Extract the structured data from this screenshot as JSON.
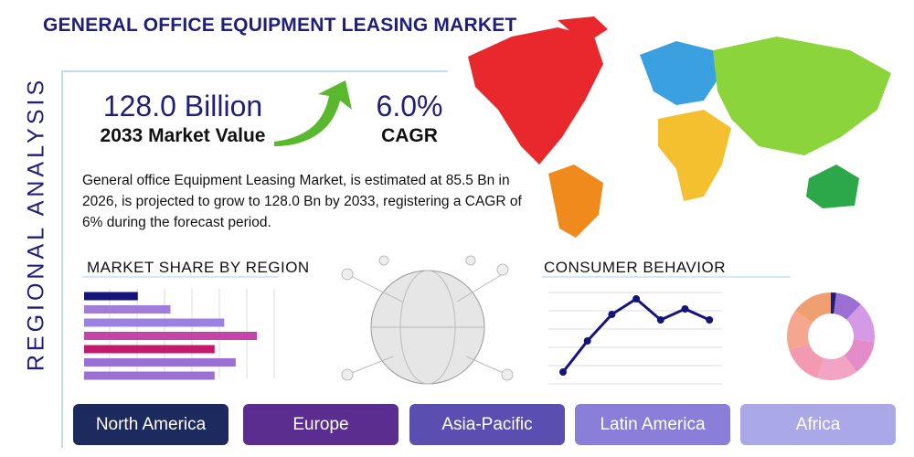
{
  "header": {
    "title": "GENERAL OFFICE EQUIPMENT LEASING MARKET",
    "side_label": "REGIONAL ANALYSIS"
  },
  "stats": {
    "market_value": "128.0 Billion",
    "market_value_label": "2033 Market Value",
    "cagr": "6.0%",
    "cagr_label": "CAGR"
  },
  "description": "General office Equipment Leasing Market, is estimated at 85.5 Bn in 2026, is projected to grow to 128.0 Bn by 2033, registering a CAGR of 6% during the forecast period.",
  "chart_data": [
    {
      "type": "bar",
      "title": "MARKET SHARE BY REGION",
      "values": [
        28,
        45,
        73,
        90,
        68,
        79,
        68
      ],
      "colors": [
        "#16167a",
        "#a07ed8",
        "#9c82e0",
        "#c445aa",
        "#c41a6e",
        "#9a6fd8",
        "#9a70d0"
      ],
      "xlim": [
        0,
        100
      ]
    },
    {
      "type": "line",
      "title": "CONSUMER BEHAVIOR",
      "categories": [
        null,
        null,
        null,
        null,
        null,
        null,
        null
      ],
      "values": [
        13,
        47,
        76,
        93,
        70,
        82,
        70
      ],
      "color": "#14147a",
      "ylim": [
        0,
        100
      ]
    },
    {
      "type": "pie",
      "values": [
        2,
        10,
        15,
        13,
        15,
        15,
        15,
        15
      ],
      "colors": [
        "#1c1c7a",
        "#9b6fd4",
        "#d49ae6",
        "#e48cc8",
        "#f3a3c4",
        "#f29ab2",
        "#f4a68e",
        "#f0a070"
      ]
    }
  ],
  "regions": [
    "North America",
    "Europe",
    "Asia-Pacific",
    "Latin America",
    "Africa"
  ]
}
